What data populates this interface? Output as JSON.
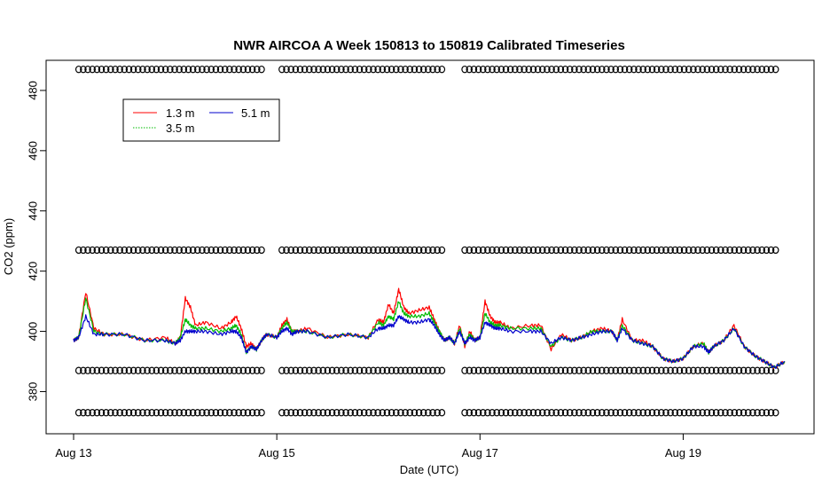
{
  "chart_data": {
    "type": "line",
    "title": "NWR AIRCOA A  Week 150813 to 150819  Calibrated Timeseries",
    "xlabel": "Date (UTC)",
    "ylabel": "CO2 (ppm)",
    "x_unit": "day",
    "xlim": [
      13.0,
      20.0
    ],
    "ylim": [
      366,
      490
    ],
    "x_ticks": [
      {
        "value": 13,
        "label": "Aug 13"
      },
      {
        "value": 15,
        "label": "Aug 15"
      },
      {
        "value": 17,
        "label": "Aug 17"
      },
      {
        "value": 19,
        "label": "Aug 19"
      }
    ],
    "y_ticks": [
      380,
      400,
      420,
      440,
      460,
      480
    ],
    "grid": false,
    "legend": {
      "position": "top-left",
      "entries": [
        {
          "label": "1.3 m",
          "color": "#ff0000"
        },
        {
          "label": "5.1 m",
          "color": "#0000cc"
        },
        {
          "label": "3.5 m",
          "color": "#00bb00"
        }
      ]
    },
    "series": [
      {
        "name": "1.3 m",
        "color": "#ff0000",
        "x": [
          13.0,
          13.05,
          13.12,
          13.2,
          13.3,
          13.5,
          13.7,
          13.9,
          14.0,
          14.05,
          14.1,
          14.15,
          14.2,
          14.3,
          14.45,
          14.55,
          14.6,
          14.65,
          14.7,
          14.75,
          14.8,
          14.85,
          14.9,
          15.0,
          15.05,
          15.1,
          15.15,
          15.2,
          15.3,
          15.5,
          15.7,
          15.9,
          16.0,
          16.05,
          16.1,
          16.15,
          16.2,
          16.25,
          16.3,
          16.4,
          16.5,
          16.55,
          16.6,
          16.65,
          16.7,
          16.75,
          16.8,
          16.85,
          16.9,
          16.95,
          17.0,
          17.05,
          17.1,
          17.15,
          17.2,
          17.3,
          17.5,
          17.6,
          17.7,
          17.8,
          17.9,
          18.0,
          18.1,
          18.2,
          18.3,
          18.35,
          18.4,
          18.5,
          18.6,
          18.7,
          18.8,
          18.9,
          19.0,
          19.1,
          19.2,
          19.25,
          19.3,
          19.4,
          19.5,
          19.6,
          19.7,
          19.8,
          19.9,
          20.0
        ],
        "values": [
          397,
          398,
          413,
          401,
          399,
          399,
          397,
          398,
          396,
          398,
          411,
          408,
          402,
          403,
          401,
          403,
          405,
          401,
          395,
          396,
          394,
          397,
          399,
          398,
          402,
          404,
          400,
          400,
          401,
          398,
          399,
          398,
          404,
          403,
          409,
          406,
          414,
          408,
          406,
          407,
          408,
          404,
          400,
          397,
          398,
          396,
          402,
          395,
          400,
          397,
          398,
          410,
          405,
          403,
          403,
          401,
          402,
          402,
          394,
          399,
          397,
          398,
          400,
          401,
          400,
          397,
          404,
          397,
          397,
          395,
          391,
          390,
          391,
          395,
          396,
          393,
          395,
          397,
          402,
          395,
          392,
          390,
          388,
          390
        ]
      },
      {
        "name": "3.5 m",
        "color": "#00bb00",
        "x": [
          13.0,
          13.05,
          13.12,
          13.2,
          13.3,
          13.5,
          13.7,
          13.9,
          14.0,
          14.05,
          14.1,
          14.15,
          14.2,
          14.3,
          14.45,
          14.55,
          14.6,
          14.65,
          14.7,
          14.75,
          14.8,
          14.85,
          14.9,
          15.0,
          15.05,
          15.1,
          15.15,
          15.2,
          15.3,
          15.5,
          15.7,
          15.9,
          16.0,
          16.05,
          16.1,
          16.15,
          16.2,
          16.25,
          16.3,
          16.4,
          16.5,
          16.55,
          16.6,
          16.65,
          16.7,
          16.75,
          16.8,
          16.85,
          16.9,
          16.95,
          17.0,
          17.05,
          17.1,
          17.15,
          17.2,
          17.3,
          17.5,
          17.6,
          17.7,
          17.8,
          17.9,
          18.0,
          18.1,
          18.2,
          18.3,
          18.35,
          18.4,
          18.5,
          18.6,
          18.7,
          18.8,
          18.9,
          19.0,
          19.1,
          19.2,
          19.25,
          19.3,
          19.4,
          19.5,
          19.6,
          19.7,
          19.8,
          19.9,
          20.0
        ],
        "values": [
          397,
          398,
          411,
          400,
          399,
          399,
          397,
          397,
          396,
          398,
          404,
          402,
          401,
          401,
          400,
          401,
          402,
          399,
          393,
          395,
          394,
          397,
          399,
          398,
          401,
          403,
          400,
          400,
          400,
          398,
          399,
          398,
          403,
          402,
          405,
          404,
          410,
          406,
          405,
          405,
          406,
          403,
          400,
          397,
          398,
          396,
          401,
          396,
          399,
          397,
          398,
          406,
          403,
          402,
          402,
          401,
          401,
          401,
          395,
          398,
          397,
          398,
          400,
          400,
          400,
          397,
          402,
          397,
          396,
          395,
          391,
          390,
          391,
          395,
          396,
          393,
          395,
          397,
          401,
          395,
          392,
          390,
          388,
          390
        ]
      },
      {
        "name": "5.1 m",
        "color": "#0000cc",
        "x": [
          13.0,
          13.05,
          13.12,
          13.2,
          13.3,
          13.5,
          13.7,
          13.9,
          14.0,
          14.05,
          14.1,
          14.15,
          14.2,
          14.3,
          14.45,
          14.55,
          14.6,
          14.65,
          14.7,
          14.75,
          14.8,
          14.85,
          14.9,
          15.0,
          15.05,
          15.1,
          15.15,
          15.2,
          15.3,
          15.5,
          15.7,
          15.9,
          16.0,
          16.05,
          16.1,
          16.15,
          16.2,
          16.25,
          16.3,
          16.4,
          16.5,
          16.55,
          16.6,
          16.65,
          16.7,
          16.75,
          16.8,
          16.85,
          16.9,
          16.95,
          17.0,
          17.05,
          17.1,
          17.15,
          17.2,
          17.3,
          17.5,
          17.6,
          17.7,
          17.8,
          17.9,
          18.0,
          18.1,
          18.2,
          18.3,
          18.35,
          18.4,
          18.5,
          18.6,
          18.7,
          18.8,
          18.9,
          19.0,
          19.1,
          19.2,
          19.25,
          19.3,
          19.4,
          19.5,
          19.6,
          19.7,
          19.8,
          19.9,
          20.0
        ],
        "values": [
          397,
          398,
          405,
          399,
          399,
          399,
          397,
          397,
          396,
          397,
          400,
          400,
          400,
          400,
          399,
          400,
          400,
          398,
          393,
          395,
          394,
          397,
          399,
          398,
          400,
          401,
          399,
          400,
          400,
          398,
          399,
          398,
          401,
          401,
          402,
          402,
          405,
          404,
          403,
          403,
          404,
          402,
          399,
          397,
          398,
          396,
          400,
          396,
          398,
          397,
          398,
          403,
          402,
          401,
          401,
          400,
          400,
          400,
          396,
          398,
          397,
          398,
          399,
          400,
          400,
          397,
          401,
          397,
          396,
          395,
          391,
          390,
          391,
          395,
          395,
          393,
          395,
          397,
          401,
          395,
          392,
          390,
          388,
          390
        ]
      }
    ],
    "reference_markers": [
      {
        "name": "upper-calibration-circles",
        "y": 487,
        "segments": [
          [
            13.05,
            14.85
          ],
          [
            15.05,
            16.65
          ],
          [
            16.85,
            19.95
          ]
        ]
      },
      {
        "name": "mid-calibration-circles",
        "y": 427,
        "segments": [
          [
            13.05,
            14.85
          ],
          [
            15.05,
            16.65
          ],
          [
            16.85,
            19.95
          ]
        ]
      },
      {
        "name": "low-calibration-circles",
        "y": 387,
        "segments": [
          [
            13.05,
            14.85
          ],
          [
            15.05,
            16.65
          ],
          [
            16.85,
            19.95
          ]
        ]
      },
      {
        "name": "bottom-calibration-circles",
        "y": 373,
        "segments": [
          [
            13.05,
            14.85
          ],
          [
            15.05,
            16.65
          ],
          [
            16.85,
            19.95
          ]
        ]
      }
    ]
  }
}
